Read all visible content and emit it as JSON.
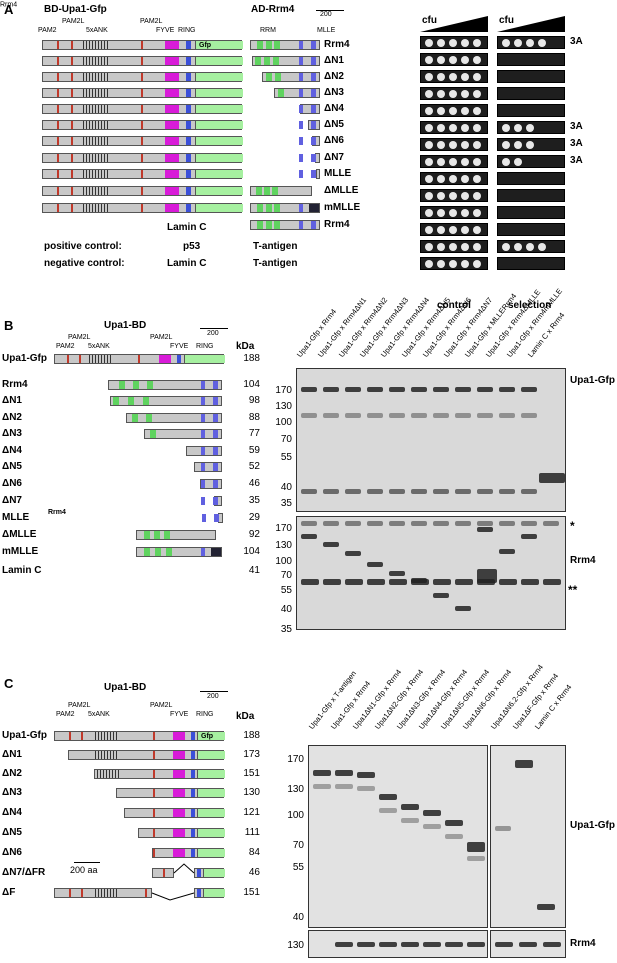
{
  "panelA": {
    "letter": "A",
    "bd_title": "BD-Upa1-Gfp",
    "ad_title": "AD-Rrm4",
    "scale": "200",
    "domains_left": [
      "PAM2",
      "PAM2L",
      "5xANK",
      "PAM2L",
      "FYVE",
      "RING",
      "Gfp"
    ],
    "domains_right": [
      "RRM",
      "MLLE"
    ],
    "constructs": [
      "Rrm4",
      "ΔN1",
      "ΔN2",
      "ΔN3",
      "ΔN4",
      "ΔN5",
      "ΔN6",
      "ΔN7",
      "MLLE",
      "ΔMLLE",
      "mMLLE",
      "Rrm4"
    ],
    "mlle_sup": "Rrm4",
    "lamin_c": "Lamin C",
    "pos_label": "positive control:",
    "pos_bd": "p53",
    "pos_ad": "T-antigen",
    "neg_label": "negative control:",
    "neg_bd": "Lamin C",
    "neg_ad": "T-antigen",
    "cfu": "cfu",
    "control": "control",
    "selection": "selection",
    "tags": [
      "3A",
      "",
      "",
      "",
      "",
      "3A",
      "3A",
      "3A",
      "",
      "",
      "",
      "",
      "",
      ""
    ]
  },
  "panelB": {
    "letter": "B",
    "title": "Upa1-BD",
    "scale": "200",
    "domains": [
      "PAM2",
      "PAM2L",
      "5xANK",
      "PAM2L",
      "FYVE",
      "RING",
      "Gfp"
    ],
    "kda_header": "kDa",
    "rows": [
      {
        "name": "Upa1-Gfp",
        "kda": "188"
      },
      {
        "name": "Rrm4",
        "kda": "104"
      },
      {
        "name": "ΔN1",
        "kda": "98"
      },
      {
        "name": "ΔN2",
        "kda": "88"
      },
      {
        "name": "ΔN3",
        "kda": "77"
      },
      {
        "name": "ΔN4",
        "kda": "59"
      },
      {
        "name": "ΔN5",
        "kda": "52"
      },
      {
        "name": "ΔN6",
        "kda": "46"
      },
      {
        "name": "ΔN7",
        "kda": "35"
      },
      {
        "name": "MLLE",
        "sup": "Rrm4",
        "kda": "29"
      },
      {
        "name": "ΔMLLE",
        "kda": "92"
      },
      {
        "name": "mMLLE",
        "kda": "104"
      },
      {
        "name": "Lamin C",
        "kda": "41"
      }
    ],
    "lanes": [
      "Upa1-Gfp x Rrm4",
      "Upa1-Gfp x Rrm4ΔN1",
      "Upa1-Gfp x Rrm4ΔN2",
      "Upa1-Gfp x Rrm4ΔN3",
      "Upa1-Gfp x Rrm4ΔN4",
      "Upa1-Gfp x Rrm4ΔN5",
      "Upa1-Gfp x Rrm4ΔN6",
      "Upa1-Gfp x Rrm4ΔN7",
      "Upa1-Gfp x MLLERrm4",
      "Upa1-Gfp x Rrm4ΔMLLE",
      "Upa1-Gfp x Rrm4mMLLE",
      "Lamin C x Rrm4"
    ],
    "blot_top_label": "Upa1-Gfp",
    "blot_bottom_label": "Rrm4",
    "star1": "*",
    "star2": "**",
    "mw_top": [
      "170",
      "130",
      "100",
      "70",
      "55",
      "40",
      "35"
    ],
    "mw_bottom": [
      "170",
      "130",
      "100",
      "70",
      "55",
      "40",
      "35"
    ]
  },
  "panelC": {
    "letter": "C",
    "title": "Upa1-BD",
    "scale": "200",
    "scale_aa": "200 aa",
    "domains": [
      "PAM2",
      "PAM2L",
      "5xANK",
      "PAM2L",
      "FYVE",
      "RING",
      "Gfp"
    ],
    "kda_header": "kDa",
    "rows": [
      {
        "name": "Upa1-Gfp",
        "kda": "188"
      },
      {
        "name": "ΔN1",
        "kda": "173"
      },
      {
        "name": "ΔN2",
        "kda": "151"
      },
      {
        "name": "ΔN3",
        "kda": "130"
      },
      {
        "name": "ΔN4",
        "kda": "121"
      },
      {
        "name": "ΔN5",
        "kda": "111"
      },
      {
        "name": "ΔN6",
        "kda": "84"
      },
      {
        "name": "ΔN7/ΔFR",
        "kda": "46"
      },
      {
        "name": "ΔF",
        "kda": "151"
      }
    ],
    "lanes": [
      "Upa1-Gfp x T-antigen",
      "Upa1-Gfp x Rrm4",
      "Upa1ΔN1-Gfp x Rrm4",
      "Upa1ΔN2-Gfp x Rrm4",
      "Upa1ΔN3-Gfp x Rrm4",
      "Upa1ΔN4-Gfp x Rrm4",
      "Upa1ΔN5-Gfp x Rrm4",
      "Upa1ΔN6-Gfp x Rrm4",
      "Upa1ΔN6.2-Gfp x Rrm4",
      "Upa1ΔF-Gfp x Rrm4",
      "Lamin C x Rrm4"
    ],
    "blot_top_label": "Upa1-Gfp",
    "blot_bottom_label": "Rrm4",
    "mw_top": [
      "170",
      "130",
      "100",
      "70",
      "55",
      "40"
    ],
    "mw_bottom": [
      "130"
    ]
  }
}
